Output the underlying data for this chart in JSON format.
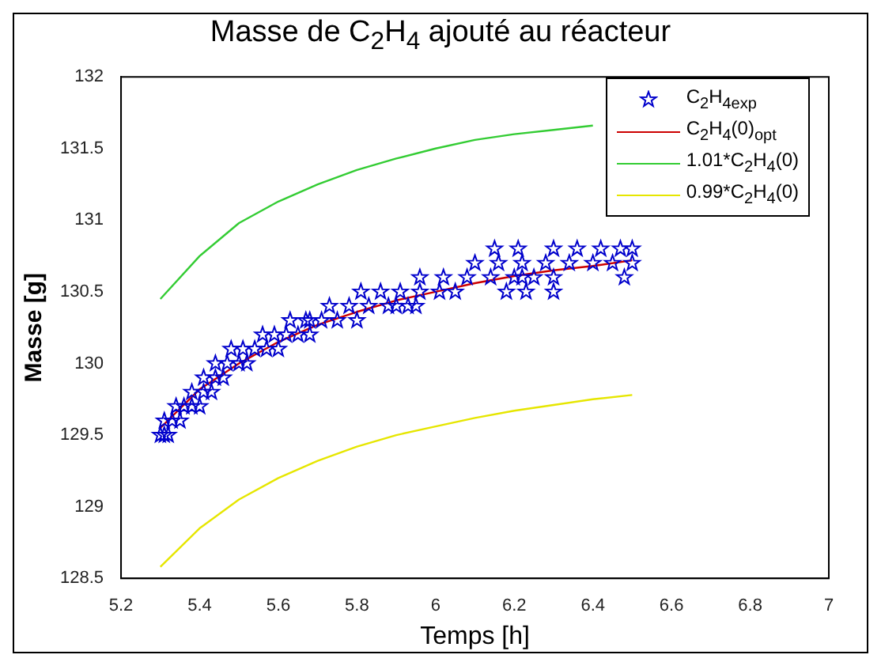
{
  "chart_data": {
    "type": "line",
    "title": "Masse de C$_{2}$H$_{4}$ ajouté au réacteur",
    "xlabel": "Temps [h]",
    "ylabel": "Masse [g]",
    "xlim": [
      5.2,
      7
    ],
    "xticks": [
      5.2,
      5.4,
      5.6,
      5.8,
      6,
      6.2,
      6.4,
      6.6,
      6.8,
      7
    ],
    "ylim": [
      128.5,
      132
    ],
    "yticks": [
      128.5,
      129,
      129.5,
      130,
      130.5,
      131,
      131.5,
      132
    ],
    "grid": false,
    "legend": "top right",
    "series": [
      {
        "name": "C$_{2}$H$_{4exp}$",
        "type": "scatter",
        "marker": "star",
        "color": "#0000cc",
        "x": [
          5.3,
          5.31,
          5.32,
          5.31,
          5.33,
          5.35,
          5.34,
          5.36,
          5.38,
          5.4,
          5.38,
          5.41,
          5.43,
          5.41,
          5.44,
          5.46,
          5.44,
          5.47,
          5.5,
          5.52,
          5.48,
          5.51,
          5.54,
          5.57,
          5.6,
          5.56,
          5.59,
          5.62,
          5.65,
          5.68,
          5.63,
          5.67,
          5.71,
          5.75,
          5.8,
          5.73,
          5.78,
          5.83,
          5.88,
          5.93,
          5.81,
          5.86,
          5.91,
          5.96,
          6.01,
          6.05,
          5.96,
          6.02,
          6.08,
          6.14,
          6.2,
          6.25,
          6.3,
          6.1,
          6.16,
          6.22,
          6.28,
          6.34,
          6.4,
          6.45,
          6.5,
          6.15,
          6.21,
          6.3,
          6.36,
          6.42,
          6.47,
          6.5,
          5.68,
          5.9,
          5.95,
          6.18,
          6.23,
          6.3,
          6.22,
          6.48
        ],
        "values": [
          129.5,
          129.5,
          129.5,
          129.6,
          129.6,
          129.6,
          129.7,
          129.7,
          129.7,
          129.7,
          129.8,
          129.8,
          129.8,
          129.9,
          129.9,
          129.9,
          130,
          130,
          130,
          130,
          130.1,
          130.1,
          130.1,
          130.1,
          130.1,
          130.2,
          130.2,
          130.2,
          130.2,
          130.2,
          130.3,
          130.3,
          130.3,
          130.3,
          130.3,
          130.4,
          130.4,
          130.4,
          130.4,
          130.4,
          130.5,
          130.5,
          130.5,
          130.5,
          130.5,
          130.5,
          130.6,
          130.6,
          130.6,
          130.6,
          130.6,
          130.6,
          130.6,
          130.7,
          130.7,
          130.7,
          130.7,
          130.7,
          130.7,
          130.7,
          130.7,
          130.8,
          130.8,
          130.8,
          130.8,
          130.8,
          130.8,
          130.8,
          130.3,
          130.4,
          130.4,
          130.5,
          130.5,
          130.5,
          130.6,
          130.6
        ]
      },
      {
        "name": "C$_{2}$H$_{4}$(0)$_{opt}$",
        "type": "line",
        "marker": "none",
        "color": "#cc0000",
        "x": [
          5.3,
          5.4,
          5.5,
          5.6,
          5.7,
          5.8,
          5.9,
          6,
          6.1,
          6.2,
          6.3,
          6.4,
          6.5
        ],
        "values": [
          129.55,
          129.82,
          130,
          130.15,
          130.27,
          130.36,
          130.44,
          130.5,
          130.56,
          130.61,
          130.65,
          130.68,
          130.72
        ]
      },
      {
        "name": "1.01*C$_{2}$H$_{4}$(0)",
        "type": "line",
        "marker": "none",
        "color": "#33cc33",
        "x": [
          5.3,
          5.4,
          5.5,
          5.6,
          5.7,
          5.8,
          5.9,
          6,
          6.1,
          6.2,
          6.3,
          6.4
        ],
        "values": [
          130.45,
          130.75,
          130.98,
          131.13,
          131.25,
          131.35,
          131.43,
          131.5,
          131.56,
          131.6,
          131.63,
          131.66
        ]
      },
      {
        "name": "0.99*C$_{2}$H$_{4}$(0)",
        "type": "line",
        "marker": "none",
        "color": "#e6e600",
        "x": [
          5.3,
          5.4,
          5.5,
          5.6,
          5.7,
          5.8,
          5.9,
          6,
          6.1,
          6.2,
          6.3,
          6.4,
          6.5
        ],
        "values": [
          128.58,
          128.85,
          129.05,
          129.2,
          129.32,
          129.42,
          129.5,
          129.56,
          129.62,
          129.67,
          129.71,
          129.75,
          129.78
        ]
      }
    ]
  }
}
